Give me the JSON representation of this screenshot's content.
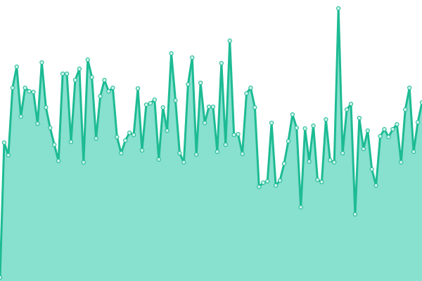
{
  "chart_data": {
    "type": "area",
    "values": [
      5,
      197,
      179,
      275,
      305,
      234,
      275,
      270,
      269,
      224,
      311,
      247,
      218,
      194,
      171,
      295,
      295,
      198,
      286,
      302,
      169,
      315,
      290,
      203,
      263,
      286,
      270,
      275,
      205,
      182,
      200,
      211,
      208,
      274,
      186,
      251,
      253,
      258,
      173,
      247,
      214,
      324,
      257,
      182,
      169,
      280,
      318,
      180,
      282,
      225,
      248,
      248,
      184,
      310,
      194,
      342,
      208,
      209,
      181,
      267,
      275,
      247,
      134,
      140,
      142,
      225,
      136,
      143,
      167,
      199,
      237,
      218,
      105,
      217,
      170,
      221,
      144,
      141,
      230,
      172,
      169,
      388,
      182,
      244,
      252,
      95,
      232,
      188,
      214,
      159,
      136,
      206,
      216,
      205,
      216,
      223,
      169,
      244,
      275,
      184,
      226,
      254
    ],
    "ylim": [
      0,
      400
    ],
    "color": "#1dbb94",
    "fill_color": "#88e0ce"
  }
}
